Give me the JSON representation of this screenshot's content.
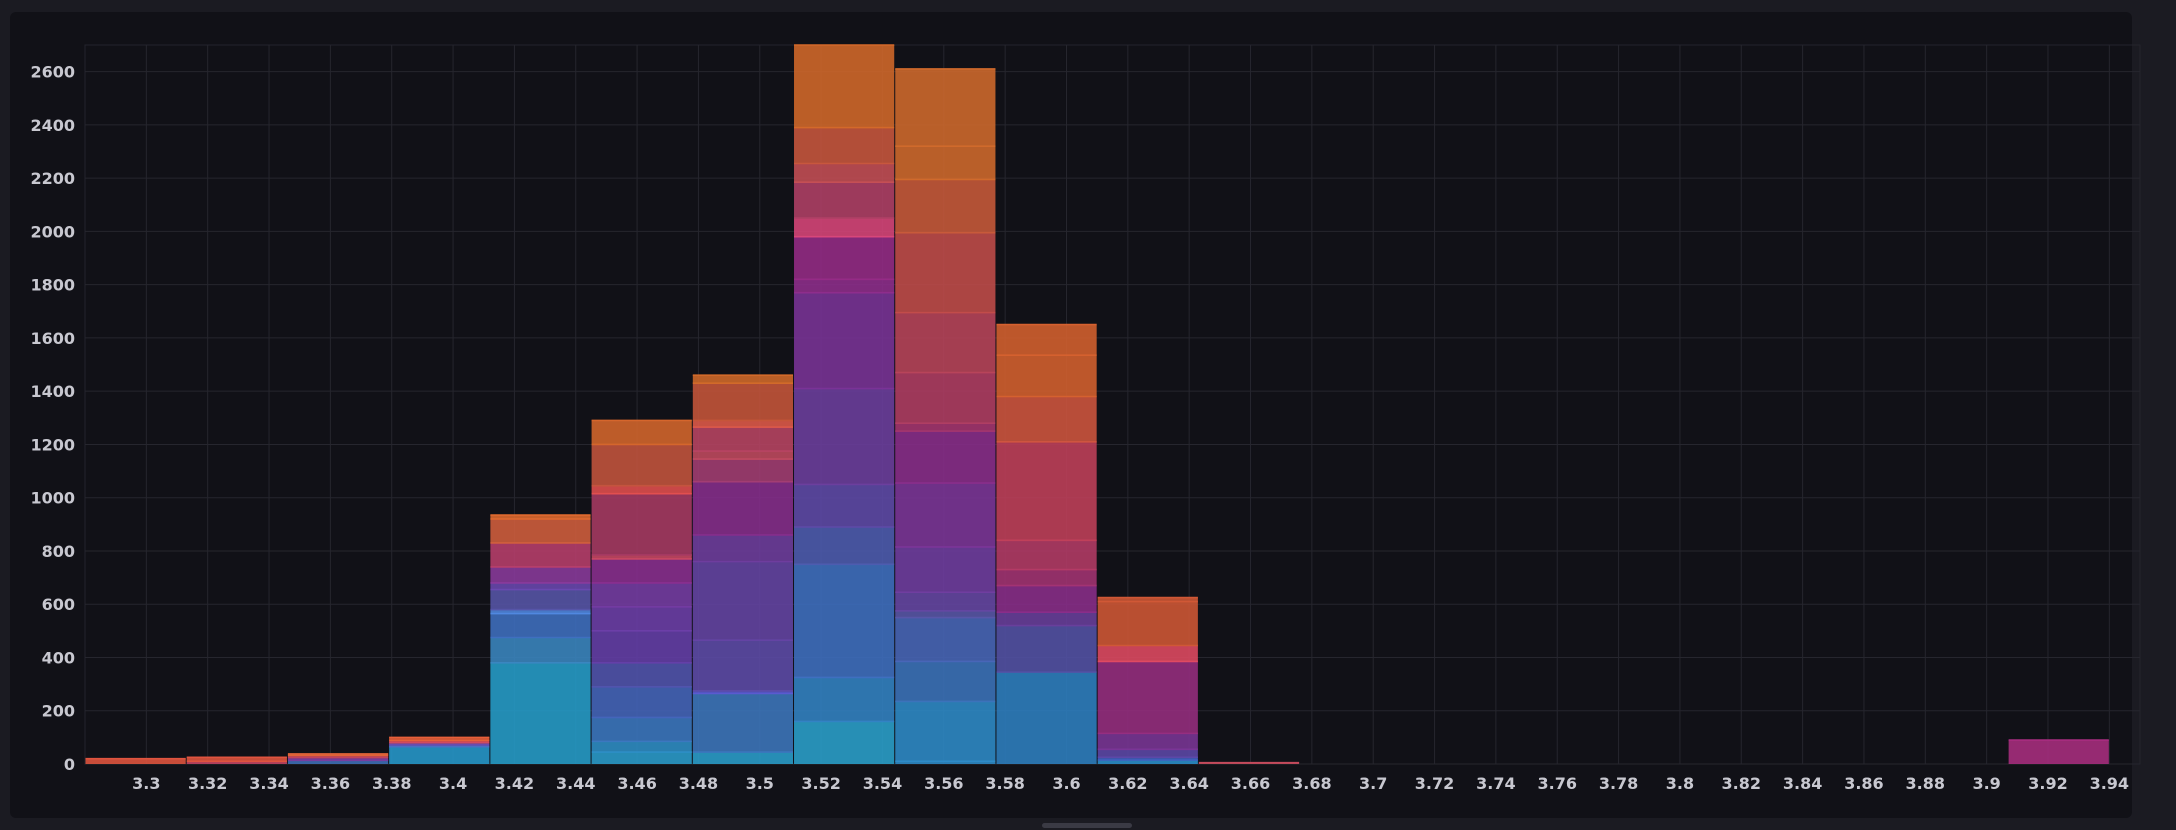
{
  "chart_data": {
    "type": "bar",
    "stacked": true,
    "title": "",
    "xlabel": "",
    "ylabel": "",
    "ylim": [
      0,
      2700
    ],
    "xlim": [
      3.28,
      3.95
    ],
    "bin_width": 0.033,
    "grid": true,
    "legend": "none",
    "y_ticks": [
      0,
      200,
      400,
      600,
      800,
      1000,
      1200,
      1400,
      1600,
      1800,
      2000,
      2200,
      2400,
      2600
    ],
    "y_tick_labels": [
      "0",
      "200",
      "400",
      "600",
      "800",
      "1000",
      "1200",
      "1400",
      "1600",
      "1800",
      "2000",
      "2200",
      "2400",
      "2600"
    ],
    "x_ticks": [
      3.3,
      3.32,
      3.34,
      3.36,
      3.38,
      3.4,
      3.42,
      3.44,
      3.46,
      3.48,
      3.5,
      3.52,
      3.54,
      3.56,
      3.58,
      3.6,
      3.62,
      3.64,
      3.66,
      3.68,
      3.7,
      3.72,
      3.74,
      3.76,
      3.78,
      3.8,
      3.82,
      3.84,
      3.86,
      3.88,
      3.9,
      3.92,
      3.94
    ],
    "x_tick_labels": [
      "3.3",
      "3.32",
      "3.34",
      "3.36",
      "3.38",
      "3.4",
      "3.42",
      "3.44",
      "3.46",
      "3.48",
      "3.5",
      "3.52",
      "3.54",
      "3.56",
      "3.58",
      "3.6",
      "3.62",
      "3.64",
      "3.66",
      "3.68",
      "3.7",
      "3.72",
      "3.74",
      "3.76",
      "3.78",
      "3.8",
      "3.82",
      "3.84",
      "3.86",
      "3.88",
      "3.9",
      "3.92",
      "3.94"
    ],
    "bins": [
      {
        "x0": 3.28,
        "segments": [
          [
            0,
            "#e0543f"
          ],
          [
            20,
            "#e0543f"
          ]
        ]
      },
      {
        "x0": 3.313,
        "segments": [
          [
            0,
            "#c44465"
          ],
          [
            10,
            "#e0543f"
          ],
          [
            25,
            "#e0543f"
          ]
        ]
      },
      {
        "x0": 3.346,
        "segments": [
          [
            0,
            "#3e6fb8"
          ],
          [
            14,
            "#7a3ea0"
          ],
          [
            24,
            "#c0425f"
          ],
          [
            32,
            "#e06438"
          ],
          [
            38,
            "#e06438"
          ]
        ]
      },
      {
        "x0": 3.379,
        "segments": [
          [
            0,
            "#2699cc"
          ],
          [
            65,
            "#4a6fc4"
          ],
          [
            72,
            "#6a4bb0"
          ],
          [
            80,
            "#d24a60"
          ],
          [
            88,
            "#e8603a"
          ],
          [
            100,
            "#e8603a"
          ]
        ]
      },
      {
        "x0": 3.412,
        "segments": [
          [
            0,
            "#269dca"
          ],
          [
            380,
            "#3a86c0"
          ],
          [
            475,
            "#3f6fc0"
          ],
          [
            565,
            "#5088e0"
          ],
          [
            580,
            "#5655a8"
          ],
          [
            655,
            "#6a48b0"
          ],
          [
            680,
            "#8a3a9c"
          ],
          [
            740,
            "#b83f6c"
          ],
          [
            830,
            "#d15f3d"
          ],
          [
            920,
            "#e06a2f"
          ],
          [
            935,
            "#e06a2f"
          ]
        ]
      },
      {
        "x0": 3.445,
        "segments": [
          [
            0,
            "#2a9ccc"
          ],
          [
            45,
            "#2e8ec6"
          ],
          [
            85,
            "#3b78c0"
          ],
          [
            175,
            "#4465bb"
          ],
          [
            290,
            "#5154ae"
          ],
          [
            380,
            "#643fa8"
          ],
          [
            500,
            "#6c3fa8"
          ],
          [
            590,
            "#753ca4"
          ],
          [
            680,
            "#8a2f90"
          ],
          [
            770,
            "#c84864"
          ],
          [
            785,
            "#a73a63"
          ],
          [
            1015,
            "#e24f4f"
          ],
          [
            1045,
            "#c4543e"
          ],
          [
            1200,
            "#d5662c"
          ],
          [
            1290,
            "#d5662c"
          ]
        ]
      },
      {
        "x0": 3.478,
        "segments": [
          [
            0,
            "#2a9ecc"
          ],
          [
            45,
            "#3c76bd"
          ],
          [
            265,
            "#5a5ad0"
          ],
          [
            275,
            "#5d4ba8"
          ],
          [
            465,
            "#6444a4"
          ],
          [
            760,
            "#6e3d9e"
          ],
          [
            860,
            "#862e8c"
          ],
          [
            1060,
            "#a33d73"
          ],
          [
            1145,
            "#c04a60"
          ],
          [
            1175,
            "#b84463"
          ],
          [
            1265,
            "#e05a4a"
          ],
          [
            1290,
            "#c6553a"
          ],
          [
            1430,
            "#d26a2a"
          ],
          [
            1460,
            "#d26a2a"
          ]
        ]
      },
      {
        "x0": 3.511,
        "segments": [
          [
            0,
            "#2aa0cc"
          ],
          [
            160,
            "#3283c4"
          ],
          [
            325,
            "#3f6fc0"
          ],
          [
            750,
            "#4d5cb0"
          ],
          [
            890,
            "#5f4aa8"
          ],
          [
            1050,
            "#6c3f9e"
          ],
          [
            1410,
            "#7a3397"
          ],
          [
            1770,
            "#8e2d8c"
          ],
          [
            1820,
            "#952b86"
          ],
          [
            1980,
            "#d8467a"
          ],
          [
            2050,
            "#b14066"
          ],
          [
            2185,
            "#c54f55"
          ],
          [
            2255,
            "#c8573d"
          ],
          [
            2390,
            "#d3692a"
          ],
          [
            2700,
            "#d3692a"
          ]
        ]
      },
      {
        "x0": 3.544,
        "segments": [
          [
            0,
            "#2d8bc8"
          ],
          [
            10,
            "#2e8bc8"
          ],
          [
            235,
            "#3b73bb"
          ],
          [
            385,
            "#4866b8"
          ],
          [
            550,
            "#5956a8"
          ],
          [
            575,
            "#6547a4"
          ],
          [
            645,
            "#703ea0"
          ],
          [
            815,
            "#7c3598"
          ],
          [
            1055,
            "#8a2e8b"
          ],
          [
            1250,
            "#a5366f"
          ],
          [
            1280,
            "#b03e63"
          ],
          [
            1470,
            "#b8445a"
          ],
          [
            1695,
            "#c24c4a"
          ],
          [
            1995,
            "#c85a3a"
          ],
          [
            2195,
            "#d06a2c"
          ],
          [
            2320,
            "#d06a2c"
          ],
          [
            2610,
            "#d06a2c"
          ]
        ]
      },
      {
        "x0": 3.577,
        "segments": [
          [
            0,
            "#2d7fc0"
          ],
          [
            345,
            "#5352a6"
          ],
          [
            520,
            "#693f9c"
          ],
          [
            570,
            "#8a2d8a"
          ],
          [
            670,
            "#a33373"
          ],
          [
            730,
            "#b43b66"
          ],
          [
            840,
            "#c0405a"
          ],
          [
            1210,
            "#cf553f"
          ],
          [
            1380,
            "#d5612f"
          ],
          [
            1535,
            "#d5612f"
          ],
          [
            1650,
            "#d5612f"
          ]
        ]
      },
      {
        "x0": 3.61,
        "segments": [
          [
            0,
            "#2a90cc"
          ],
          [
            15,
            "#4060c0"
          ],
          [
            25,
            "#5c48a8"
          ],
          [
            55,
            "#7a3596"
          ],
          [
            115,
            "#962e80"
          ],
          [
            385,
            "#e04a62"
          ],
          [
            445,
            "#d05836"
          ],
          [
            610,
            "#d05836"
          ],
          [
            625,
            "#d05836"
          ]
        ]
      },
      {
        "x0": 3.643,
        "segments": [
          [
            0,
            "#c44a5c"
          ],
          [
            5,
            "#c44a5c"
          ]
        ]
      },
      {
        "x0": 3.676,
        "segments": []
      },
      {
        "x0": 3.709,
        "segments": []
      },
      {
        "x0": 3.742,
        "segments": []
      },
      {
        "x0": 3.775,
        "segments": []
      },
      {
        "x0": 3.808,
        "segments": []
      },
      {
        "x0": 3.841,
        "segments": []
      },
      {
        "x0": 3.874,
        "segments": []
      },
      {
        "x0": 3.907,
        "segments": [
          [
            0,
            "#a82d80"
          ],
          [
            90,
            "#a82d80"
          ]
        ]
      }
    ]
  }
}
